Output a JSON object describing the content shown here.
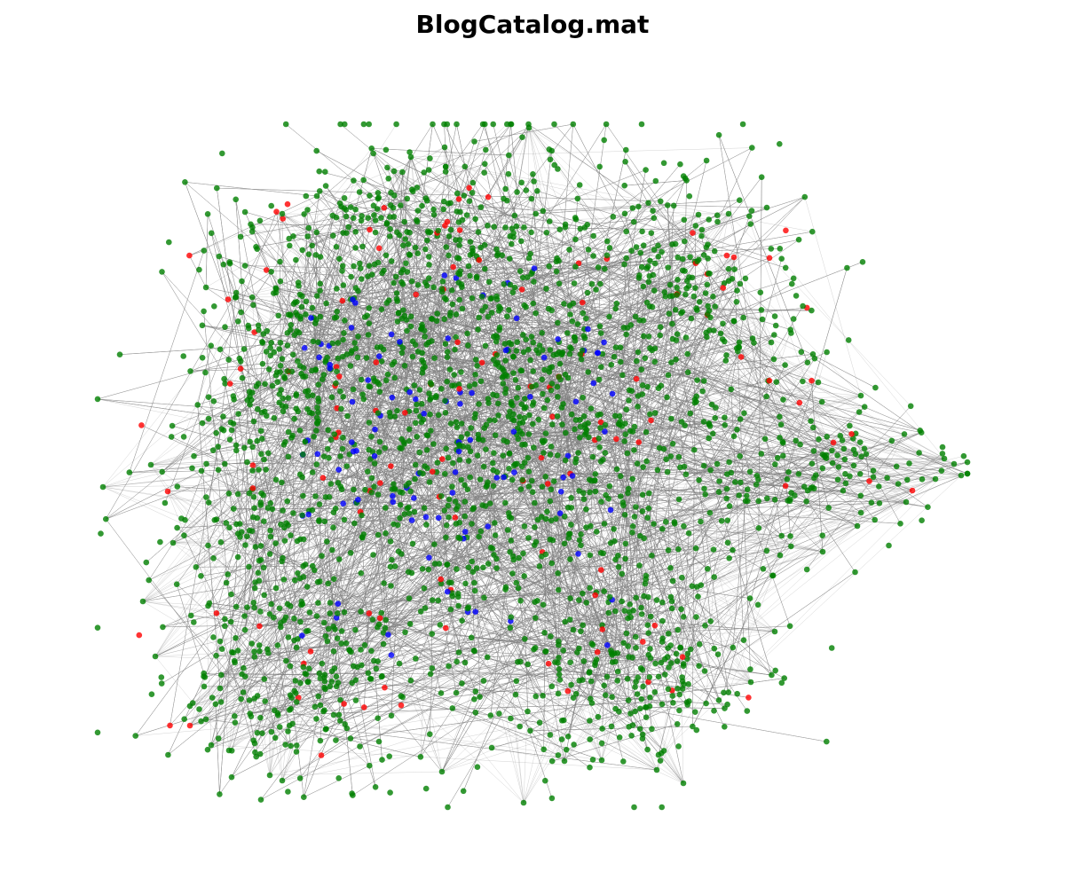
{
  "figure": {
    "title": "BlogCatalog.mat"
  },
  "graph": {
    "edge_color": "#808080",
    "node_colors": {
      "majority": "#008000",
      "class_b": "#0000ff",
      "class_r": "#ff0000"
    }
  }
}
